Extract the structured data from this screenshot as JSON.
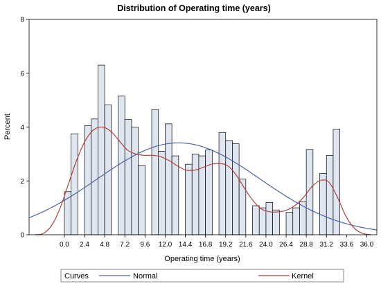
{
  "chart_data": {
    "type": "bar",
    "title": "Distribution of Operating time (years)",
    "xlabel": "Operating time (years)",
    "ylabel": "Percent",
    "xlim": [
      -4.2,
      37.2
    ],
    "ylim": [
      0,
      8
    ],
    "x_ticks": [
      "0.0",
      "2.4",
      "4.8",
      "7.2",
      "9.6",
      "12.0",
      "14.4",
      "16.8",
      "19.2",
      "21.6",
      "24.0",
      "26.4",
      "28.8",
      "31.2",
      "33.6",
      "36.0"
    ],
    "x_tick_values": [
      0.0,
      2.4,
      4.8,
      7.2,
      9.6,
      12.0,
      14.4,
      16.8,
      19.2,
      21.6,
      24.0,
      26.4,
      28.8,
      31.2,
      33.6,
      36.0
    ],
    "y_ticks": [
      "0",
      "2",
      "4",
      "6",
      "8"
    ],
    "y_tick_values": [
      0,
      2,
      4,
      6,
      8
    ],
    "bin_width": 0.8,
    "bins": [
      {
        "x": 0.0,
        "value": 1.6
      },
      {
        "x": 0.8,
        "value": 3.75
      },
      {
        "x": 2.4,
        "value": 4.05
      },
      {
        "x": 3.2,
        "value": 4.3
      },
      {
        "x": 4.0,
        "value": 6.3
      },
      {
        "x": 4.8,
        "value": 4.82
      },
      {
        "x": 6.4,
        "value": 5.15
      },
      {
        "x": 7.2,
        "value": 4.28
      },
      {
        "x": 8.0,
        "value": 4.0
      },
      {
        "x": 8.8,
        "value": 2.58
      },
      {
        "x": 10.4,
        "value": 4.65
      },
      {
        "x": 11.2,
        "value": 3.1
      },
      {
        "x": 12.0,
        "value": 4.12
      },
      {
        "x": 12.8,
        "value": 2.93
      },
      {
        "x": 14.4,
        "value": 2.62
      },
      {
        "x": 15.2,
        "value": 3.0
      },
      {
        "x": 16.0,
        "value": 2.93
      },
      {
        "x": 16.8,
        "value": 3.15
      },
      {
        "x": 18.4,
        "value": 3.8
      },
      {
        "x": 19.2,
        "value": 3.5
      },
      {
        "x": 20.0,
        "value": 3.38
      },
      {
        "x": 20.8,
        "value": 2.07
      },
      {
        "x": 22.4,
        "value": 1.08
      },
      {
        "x": 23.2,
        "value": 1.0
      },
      {
        "x": 24.0,
        "value": 1.2
      },
      {
        "x": 24.8,
        "value": 0.92
      },
      {
        "x": 26.4,
        "value": 0.83
      },
      {
        "x": 27.2,
        "value": 1.0
      },
      {
        "x": 28.0,
        "value": 1.22
      },
      {
        "x": 28.8,
        "value": 3.17
      },
      {
        "x": 30.4,
        "value": 2.28
      },
      {
        "x": 31.2,
        "value": 2.95
      },
      {
        "x": 32.0,
        "value": 3.92
      }
    ],
    "normal_curve": {
      "name": "Normal",
      "color": "#4a63a8",
      "mean": 13.6,
      "sd": 9.7,
      "scale": 83
    },
    "kernel_curve": {
      "name": "Kernel",
      "color": "#b0403c",
      "points": [
        [
          -3.5,
          0.0
        ],
        [
          -2.5,
          0.05
        ],
        [
          -1.5,
          0.35
        ],
        [
          -0.5,
          1.0
        ],
        [
          0.5,
          1.9
        ],
        [
          1.5,
          2.8
        ],
        [
          2.5,
          3.5
        ],
        [
          3.5,
          3.9
        ],
        [
          4.5,
          4.0
        ],
        [
          5.5,
          3.85
        ],
        [
          6.5,
          3.5
        ],
        [
          7.5,
          3.15
        ],
        [
          8.5,
          3.0
        ],
        [
          9.5,
          2.95
        ],
        [
          10.5,
          2.95
        ],
        [
          11.5,
          2.9
        ],
        [
          12.5,
          2.75
        ],
        [
          13.5,
          2.55
        ],
        [
          14.5,
          2.4
        ],
        [
          15.5,
          2.4
        ],
        [
          16.5,
          2.5
        ],
        [
          17.5,
          2.62
        ],
        [
          18.5,
          2.65
        ],
        [
          19.5,
          2.55
        ],
        [
          20.5,
          2.2
        ],
        [
          21.5,
          1.7
        ],
        [
          22.5,
          1.25
        ],
        [
          23.5,
          0.95
        ],
        [
          24.5,
          0.85
        ],
        [
          25.5,
          0.85
        ],
        [
          26.5,
          0.92
        ],
        [
          27.5,
          1.1
        ],
        [
          28.5,
          1.4
        ],
        [
          29.5,
          1.8
        ],
        [
          30.5,
          2.02
        ],
        [
          31.5,
          1.95
        ],
        [
          32.5,
          1.4
        ],
        [
          33.5,
          0.7
        ],
        [
          34.5,
          0.25
        ],
        [
          35.5,
          0.05
        ],
        [
          36.5,
          0.0
        ]
      ]
    },
    "legend": {
      "placement": "bottom",
      "title": "Curves",
      "entries": [
        "Normal",
        "Kernel"
      ]
    },
    "grid": false,
    "colors": {
      "bar_fill": "#e0e6f0",
      "bar_stroke": "#000000",
      "normal": "#4a63a8",
      "kernel": "#b0403c"
    }
  }
}
